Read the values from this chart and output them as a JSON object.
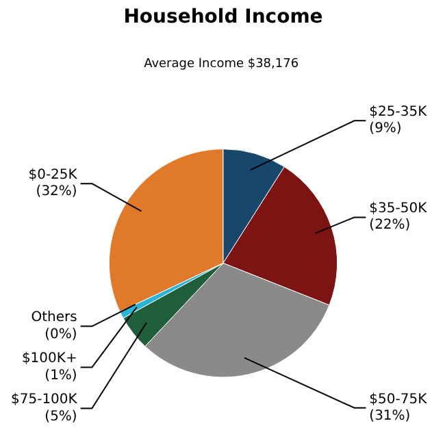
{
  "chart_data": {
    "type": "pie",
    "title": "Household Income",
    "subtitle": "Average Income  $38,176",
    "categories": [
      "$0-25K",
      "$25-35K",
      "$35-50K",
      "$50-75K",
      "$75-100K",
      "$100K+",
      "Others"
    ],
    "values": [
      32,
      9,
      22,
      31,
      5,
      1,
      0
    ],
    "value_labels": [
      "(32%)",
      "(9%)",
      "(22%)",
      "(31%)",
      "(5%)",
      "(1%)",
      "(0%)"
    ],
    "colors": [
      "#e07a2a",
      "#17476b",
      "#7d1414",
      "#8a8a8a",
      "#1f5f3b",
      "#2ab4d6",
      "#b0b0b0"
    ]
  }
}
